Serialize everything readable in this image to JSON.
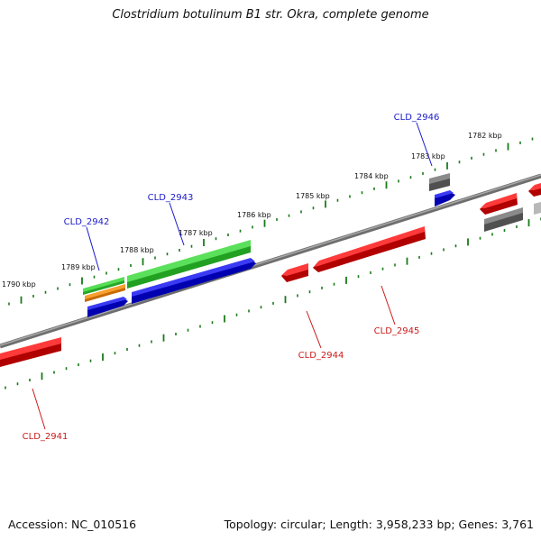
{
  "title": "Clostridium botulinum B1 str. Okra, complete genome",
  "footer": {
    "accession": "Accession: NC_010516",
    "topology": "Topology: circular; Length: 3,958,233 bp; Genes: 3,761"
  },
  "colors": {
    "backbone": "#808080",
    "ruler": "#1a7a1a",
    "label_forward": "#1a1acc",
    "label_reverse": "#cc1a1a",
    "feature_red": "#e81010",
    "feature_blue": "#1010e0",
    "feature_green": "#3cc43c",
    "feature_orange": "#f08a10",
    "feature_gray": "#707070"
  },
  "ruler_labels": [
    "1790 kbp",
    "1789 kbp",
    "1788 kbp",
    "1787 kbp",
    "1786 kbp",
    "1785 kbp",
    "1784 kbp",
    "1783 kbp",
    "1782 kbp"
  ],
  "gene_labels": [
    {
      "text": "CLD_2942",
      "strand": "forward"
    },
    {
      "text": "CLD_2943",
      "strand": "forward"
    },
    {
      "text": "CLD_2946",
      "strand": "forward"
    },
    {
      "text": "CLD_2941",
      "strand": "reverse"
    },
    {
      "text": "CLD_2944",
      "strand": "reverse"
    },
    {
      "text": "CLD_2945",
      "strand": "reverse"
    }
  ]
}
